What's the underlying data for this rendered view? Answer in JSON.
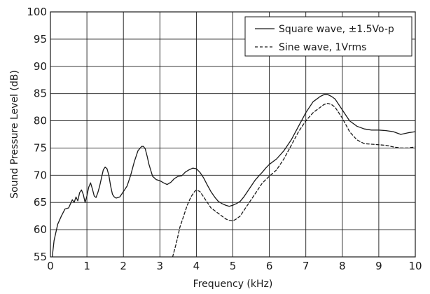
{
  "chart_data": {
    "type": "line",
    "xlabel": "Frequency (kHz)",
    "ylabel": "Sound Pressure Level (dB)",
    "xlim": [
      0,
      10
    ],
    "ylim": [
      55,
      100
    ],
    "xticks": [
      0,
      1,
      2,
      3,
      4,
      5,
      6,
      7,
      8,
      9,
      10
    ],
    "xtick_labels": [
      "0",
      "1",
      "2",
      "3",
      "4",
      "5",
      "6",
      "7",
      "8",
      "9",
      "10"
    ],
    "yticks": [
      55,
      60,
      65,
      70,
      75,
      80,
      85,
      90,
      95,
      100
    ],
    "ytick_labels": [
      "55",
      "60",
      "65",
      "70",
      "75",
      "80",
      "85",
      "90",
      "95",
      "100"
    ],
    "grid": true,
    "legend_position": "top-right",
    "colors": {
      "line": "#1a1a1a",
      "grid": "#1a1a1a",
      "background": "#ffffff"
    },
    "series": [
      {
        "name": "Square wave, ±1.5Vo-p",
        "style": "solid",
        "x": [
          0.05,
          0.1,
          0.2,
          0.3,
          0.4,
          0.5,
          0.6,
          0.65,
          0.7,
          0.75,
          0.8,
          0.85,
          0.9,
          0.95,
          1.0,
          1.05,
          1.1,
          1.15,
          1.2,
          1.25,
          1.3,
          1.35,
          1.4,
          1.45,
          1.5,
          1.55,
          1.6,
          1.65,
          1.7,
          1.75,
          1.8,
          1.9,
          2.0,
          2.1,
          2.2,
          2.3,
          2.4,
          2.5,
          2.55,
          2.6,
          2.65,
          2.7,
          2.8,
          2.9,
          3.0,
          3.1,
          3.2,
          3.3,
          3.4,
          3.5,
          3.6,
          3.7,
          3.8,
          3.9,
          4.0,
          4.1,
          4.2,
          4.3,
          4.4,
          4.5,
          4.6,
          4.7,
          4.8,
          4.9,
          5.0,
          5.1,
          5.2,
          5.3,
          5.4,
          5.5,
          5.6,
          5.7,
          5.8,
          5.9,
          6.0,
          6.2,
          6.4,
          6.6,
          6.8,
          7.0,
          7.2,
          7.4,
          7.5,
          7.6,
          7.7,
          7.8,
          8.0,
          8.2,
          8.4,
          8.6,
          8.8,
          9.0,
          9.2,
          9.4,
          9.6,
          9.8,
          10.0
        ],
        "y": [
          55.0,
          58.0,
          61.0,
          62.5,
          63.8,
          64.0,
          65.5,
          65.0,
          66.0,
          65.3,
          66.8,
          67.3,
          66.5,
          65.0,
          66.2,
          67.8,
          68.6,
          67.5,
          66.2,
          65.9,
          66.8,
          68.0,
          69.5,
          71.0,
          71.5,
          71.2,
          70.0,
          68.0,
          66.5,
          66.0,
          65.8,
          66.0,
          67.0,
          68.0,
          70.0,
          72.5,
          74.5,
          75.3,
          75.3,
          74.8,
          73.5,
          72.0,
          69.8,
          69.2,
          69.0,
          68.6,
          68.3,
          68.7,
          69.4,
          69.8,
          69.9,
          70.6,
          71.0,
          71.3,
          71.2,
          70.5,
          69.5,
          68.2,
          67.0,
          66.0,
          65.2,
          64.8,
          64.5,
          64.3,
          64.5,
          64.8,
          65.2,
          66.0,
          67.0,
          68.0,
          69.0,
          69.8,
          70.5,
          71.3,
          72.0,
          73.0,
          74.5,
          76.5,
          79.0,
          81.5,
          83.5,
          84.5,
          84.8,
          84.8,
          84.5,
          84.0,
          82.0,
          80.0,
          79.0,
          78.5,
          78.3,
          78.3,
          78.2,
          78.0,
          77.5,
          77.8,
          78.0
        ]
      },
      {
        "name": "Sine wave, 1Vrms",
        "style": "dashed",
        "x": [
          3.35,
          3.45,
          3.55,
          3.65,
          3.75,
          3.85,
          3.95,
          4.0,
          4.1,
          4.2,
          4.3,
          4.4,
          4.5,
          4.6,
          4.7,
          4.8,
          4.9,
          5.0,
          5.1,
          5.2,
          5.3,
          5.4,
          5.5,
          5.6,
          5.7,
          5.8,
          5.9,
          6.0,
          6.2,
          6.4,
          6.6,
          6.8,
          7.0,
          7.2,
          7.4,
          7.5,
          7.6,
          7.7,
          7.8,
          8.0,
          8.2,
          8.4,
          8.6,
          8.8,
          9.0,
          9.2,
          9.4,
          9.6,
          9.8,
          10.0
        ],
        "y": [
          55.0,
          57.5,
          60.5,
          62.5,
          64.5,
          66.0,
          67.0,
          67.3,
          67.0,
          66.0,
          65.0,
          64.0,
          63.5,
          63.0,
          62.5,
          62.0,
          61.7,
          61.6,
          62.0,
          62.5,
          63.5,
          64.5,
          65.5,
          66.5,
          67.5,
          68.5,
          69.2,
          69.8,
          71.0,
          73.0,
          75.5,
          78.0,
          80.0,
          81.5,
          82.5,
          83.0,
          83.2,
          83.0,
          82.5,
          80.5,
          78.0,
          76.5,
          75.8,
          75.7,
          75.6,
          75.5,
          75.2,
          75.0,
          75.0,
          75.2
        ]
      }
    ]
  }
}
